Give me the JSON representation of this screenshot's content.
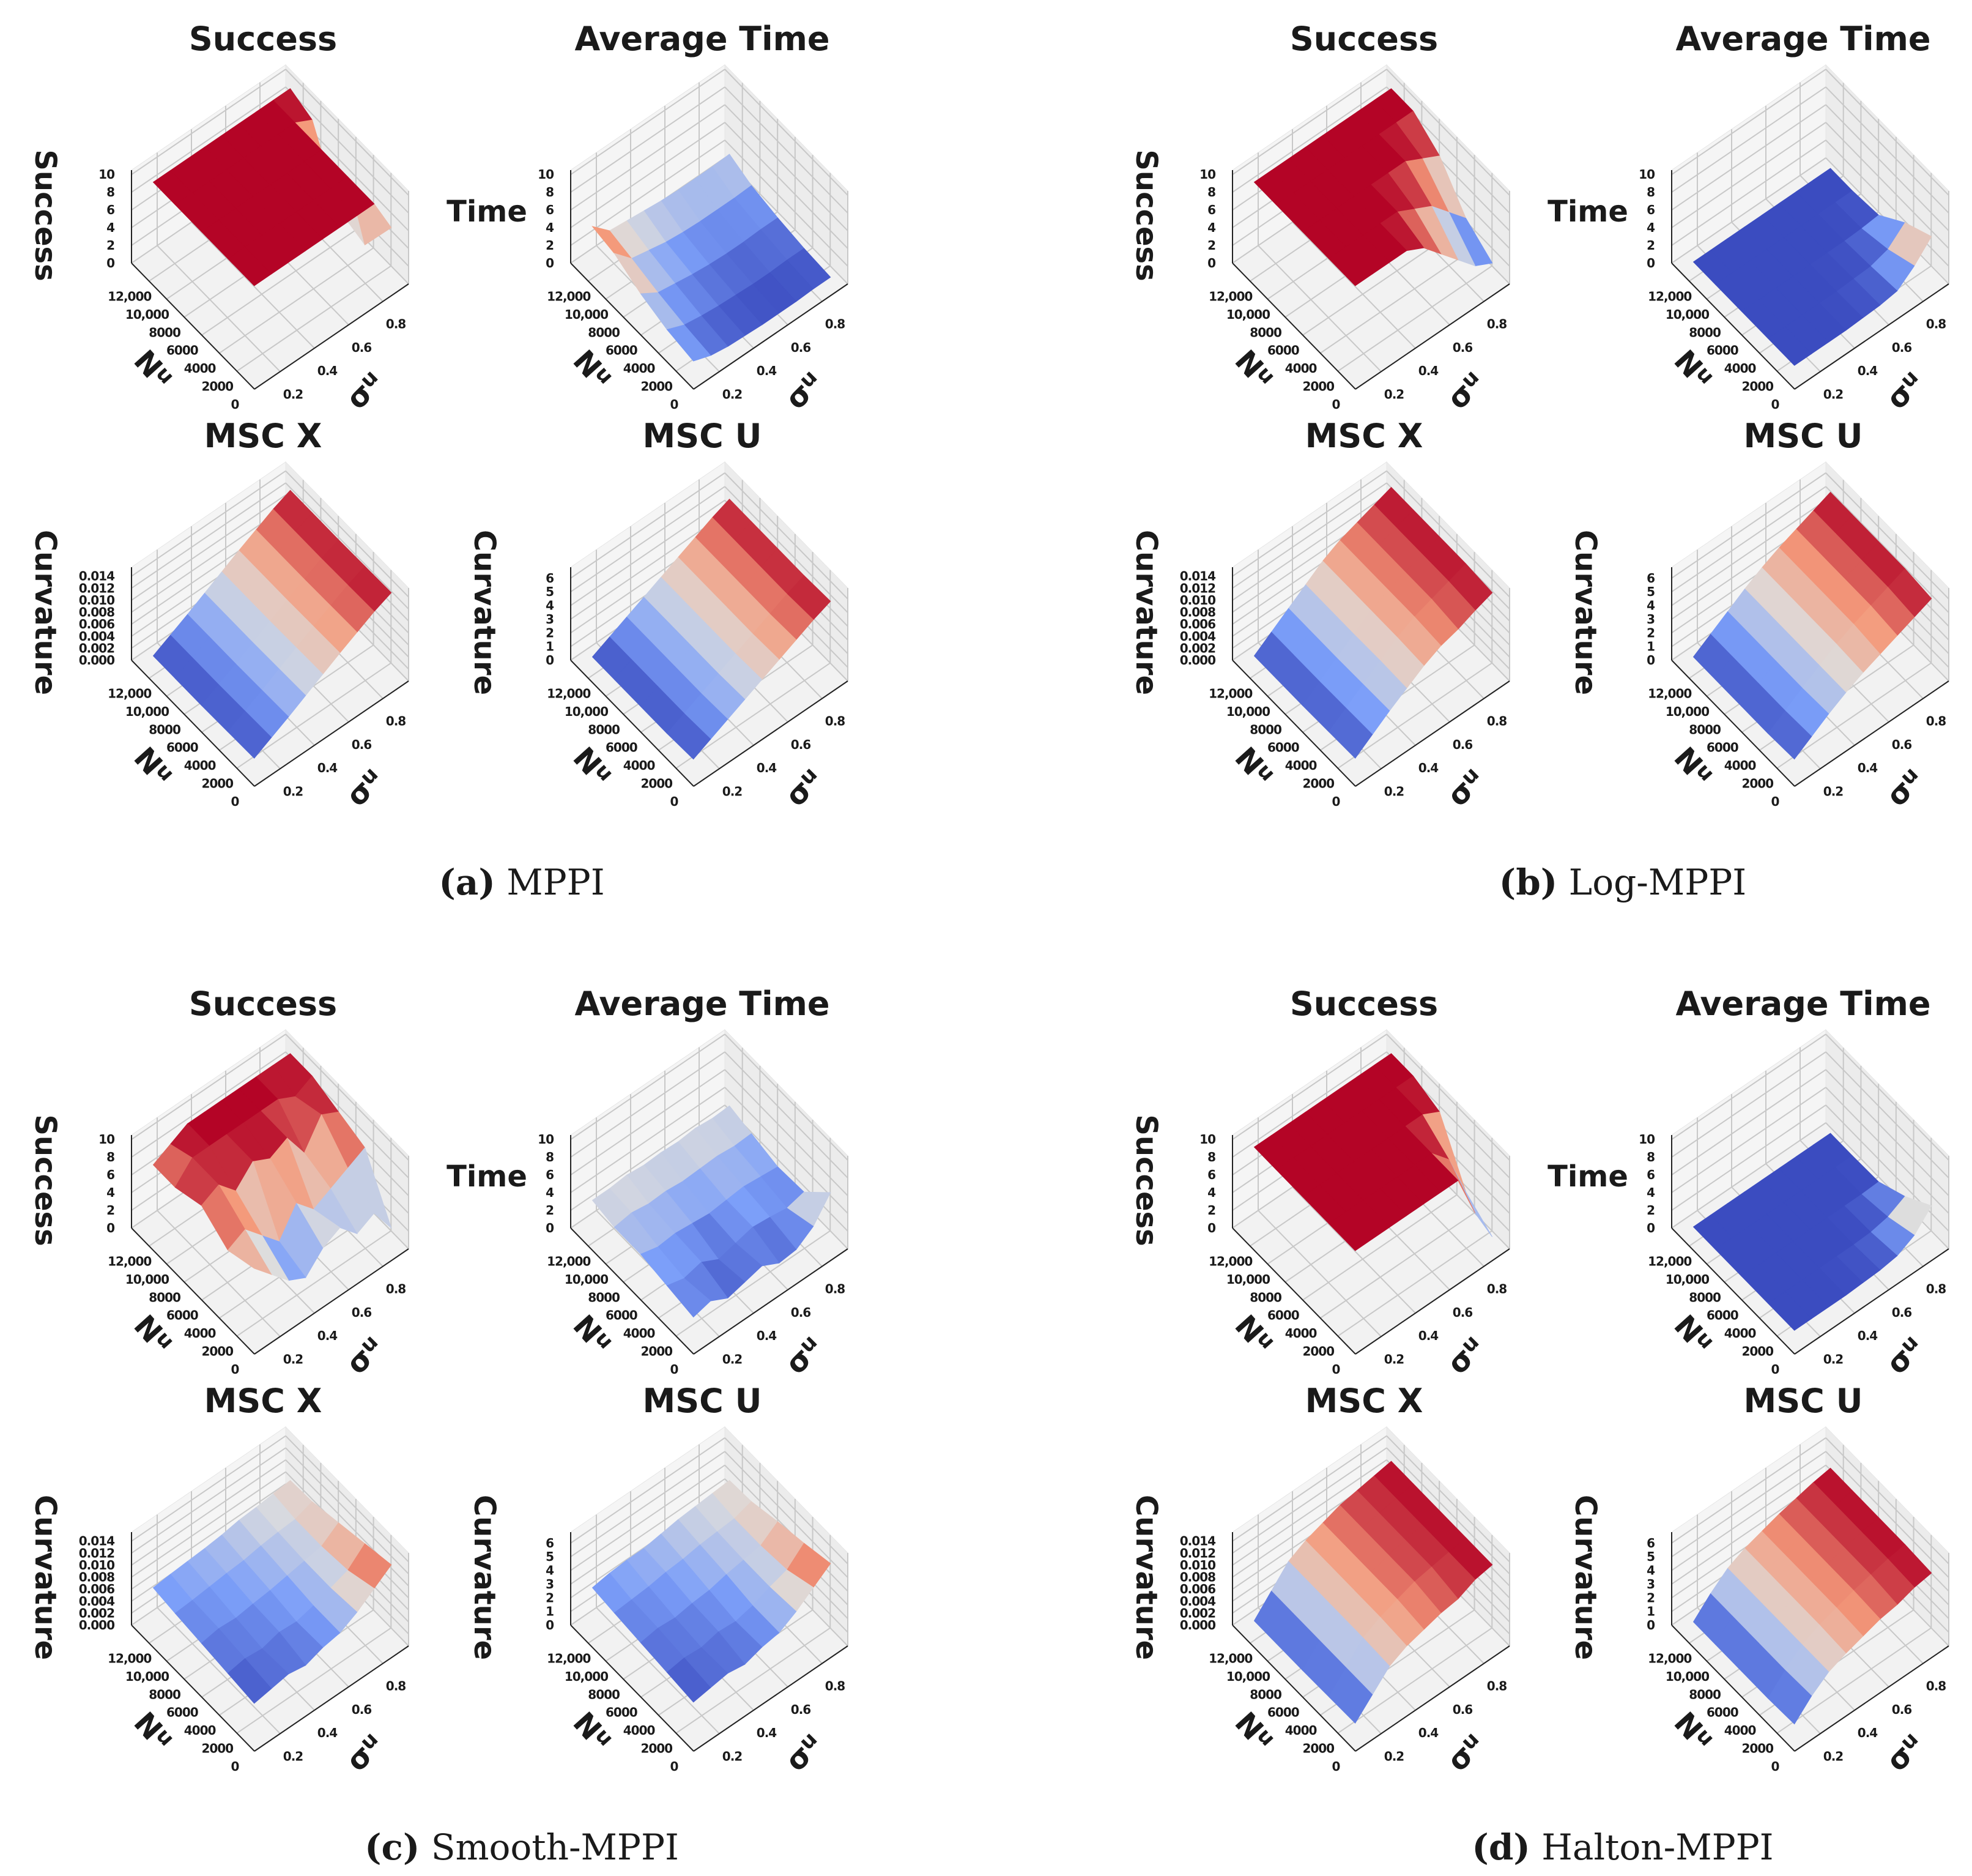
{
  "axes": {
    "xlabel": "σ",
    "xlabel_sub": "u",
    "ylabel": "N",
    "ylabel_sub": "u",
    "x_ticks": [
      "0.2",
      "0.4",
      "0.6",
      "0.8"
    ],
    "x_tick_values": [
      0.2,
      0.4,
      0.6,
      0.8
    ],
    "y_ticks": [
      "0",
      "2000",
      "4000",
      "6000",
      "8000",
      "10,000",
      "12,000"
    ],
    "y_tick_values": [
      0,
      2000,
      4000,
      6000,
      8000,
      10000,
      12000
    ],
    "x_range": [
      0.05,
      0.95
    ],
    "y_range": [
      0,
      14000
    ],
    "sigma_values": [
      0.1,
      0.2,
      0.3,
      0.4,
      0.5,
      0.6,
      0.7,
      0.8,
      0.9
    ],
    "n_values": [
      1000,
      4000,
      7000,
      10000,
      12500
    ],
    "colormap": [
      "#3b4cc0",
      "#7c9ff9",
      "#dddddd",
      "#f49a7b",
      "#b40426"
    ]
  },
  "plot_types": [
    {
      "title": "Success",
      "zlabel": "Success",
      "zlabel_horizontal": false,
      "zlim": [
        0,
        10.5
      ],
      "z_ticks": [
        "0",
        "2",
        "4",
        "6",
        "8",
        "10"
      ],
      "z_tick_values": [
        0,
        2,
        4,
        6,
        8,
        10
      ]
    },
    {
      "title": "Average Time",
      "zlabel": "Time",
      "zlabel_horizontal": true,
      "zlim": [
        0,
        10.5
      ],
      "z_ticks": [
        "0",
        "2",
        "4",
        "6",
        "8",
        "10"
      ],
      "z_tick_values": [
        0,
        2,
        4,
        6,
        8,
        10
      ]
    },
    {
      "title": "MSC X",
      "zlabel": "Curvature",
      "zlabel_horizontal": false,
      "zlim": [
        0,
        0.0155
      ],
      "z_ticks": [
        "0.000",
        "0.002",
        "0.004",
        "0.006",
        "0.008",
        "0.010",
        "0.012",
        "0.014"
      ],
      "z_tick_values": [
        0,
        0.002,
        0.004,
        0.006,
        0.008,
        0.01,
        0.012,
        0.014
      ]
    },
    {
      "title": "MSC U",
      "zlabel": "Curvature",
      "zlabel_horizontal": false,
      "zlim": [
        0,
        6.8
      ],
      "z_ticks": [
        "0",
        "1",
        "2",
        "3",
        "4",
        "5",
        "6"
      ],
      "z_tick_values": [
        0,
        1,
        2,
        3,
        4,
        5,
        6
      ]
    }
  ],
  "chart_data": [
    {
      "type": "surface",
      "caption_letter": "(a)",
      "caption_name": " MPPI",
      "plots": [
        {
          "z": [
            [
              10,
              10,
              10,
              10,
              10,
              10,
              10,
              10,
              6
            ],
            [
              10,
              10,
              10,
              10,
              10,
              10,
              10,
              10,
              1
            ],
            [
              10,
              10,
              10,
              10,
              10,
              10,
              10,
              10,
              2
            ],
            [
              10,
              10,
              10,
              10,
              10,
              10,
              10,
              10,
              9
            ],
            [
              10,
              10,
              10,
              10,
              10,
              10,
              10,
              10,
              10
            ]
          ]
        },
        {
          "z": [
            [
              1.5,
              0.8,
              0.5,
              0.4,
              0.3,
              0.3,
              0.3,
              0.4,
              0.4
            ],
            [
              2.0,
              1.2,
              0.9,
              0.7,
              0.6,
              0.5,
              0.5,
              0.6,
              0.6
            ],
            [
              3.0,
              1.8,
              1.5,
              1.2,
              1.0,
              0.9,
              0.9,
              1.0,
              1.0
            ],
            [
              4.5,
              2.6,
              2.2,
              1.8,
              1.6,
              1.5,
              1.5,
              1.5,
              1.6
            ],
            [
              5.0,
              3.2,
              3.0,
              2.8,
              2.6,
              2.5,
              2.5,
              2.5,
              2.6
            ]
          ]
        },
        {
          "z": [
            [
              0.0022,
              0.0037,
              0.0052,
              0.0068,
              0.0084,
              0.01,
              0.0115,
              0.013,
              0.0142
            ],
            [
              0.0021,
              0.0036,
              0.0051,
              0.0067,
              0.0083,
              0.0099,
              0.0114,
              0.0129,
              0.0141
            ],
            [
              0.002,
              0.0035,
              0.005,
              0.0066,
              0.0082,
              0.0098,
              0.0113,
              0.0128,
              0.014
            ],
            [
              0.002,
              0.0035,
              0.005,
              0.0066,
              0.0082,
              0.0098,
              0.0113,
              0.0128,
              0.014
            ],
            [
              0.002,
              0.0035,
              0.005,
              0.0066,
              0.0082,
              0.0098,
              0.0113,
              0.0128,
              0.014
            ]
          ]
        },
        {
          "z": [
            [
              0.9,
              1.5,
              2.1,
              2.7,
              3.3,
              3.9,
              4.5,
              5.1,
              5.6
            ],
            [
              0.8,
              1.4,
              2.0,
              2.6,
              3.2,
              3.8,
              4.4,
              5.0,
              5.5
            ],
            [
              0.8,
              1.4,
              2.0,
              2.6,
              3.2,
              3.8,
              4.4,
              5.0,
              5.5
            ],
            [
              0.8,
              1.4,
              2.0,
              2.6,
              3.2,
              3.8,
              4.4,
              5.0,
              5.5
            ],
            [
              0.8,
              1.4,
              2.0,
              2.6,
              3.2,
              3.8,
              4.4,
              5.0,
              5.5
            ]
          ]
        }
      ]
    },
    {
      "type": "surface",
      "caption_letter": "(b)",
      "caption_name": " Log-MPPI",
      "plots": [
        {
          "z": [
            [
              10,
              10,
              10,
              10,
              9,
              7,
              5,
              3,
              2
            ],
            [
              10,
              10,
              10,
              10,
              10,
              9,
              8,
              6,
              4
            ],
            [
              10,
              10,
              10,
              10,
              10,
              10,
              10,
              9,
              8
            ],
            [
              10,
              10,
              10,
              10,
              10,
              10,
              10,
              10,
              10
            ],
            [
              10,
              10,
              10,
              10,
              10,
              10,
              10,
              10,
              10
            ]
          ]
        },
        {
          "z": [
            [
              1,
              1,
              1,
              1,
              1.1,
              1.2,
              1.5,
              3,
              5
            ],
            [
              1,
              1,
              1,
              1,
              1,
              1.1,
              1.2,
              1.8,
              3.5
            ],
            [
              1,
              1,
              1,
              1,
              1,
              1,
              1,
              1.1,
              1.3
            ],
            [
              1,
              1,
              1,
              1,
              1,
              1,
              1,
              1,
              1
            ],
            [
              1,
              1,
              1,
              1,
              1,
              1,
              1,
              1,
              1
            ]
          ]
        },
        {
          "z": [
            [
              0.0022,
              0.0042,
              0.0062,
              0.008,
              0.0098,
              0.0112,
              0.012,
              0.0132,
              0.0142
            ],
            [
              0.0021,
              0.0041,
              0.0061,
              0.0081,
              0.01,
              0.0115,
              0.0125,
              0.0135,
              0.0145
            ],
            [
              0.002,
              0.004,
              0.006,
              0.008,
              0.01,
              0.0115,
              0.0125,
              0.0135,
              0.0145
            ],
            [
              0.002,
              0.004,
              0.006,
              0.008,
              0.01,
              0.0115,
              0.0125,
              0.0135,
              0.0145
            ],
            [
              0.002,
              0.004,
              0.006,
              0.008,
              0.01,
              0.0115,
              0.0125,
              0.0135,
              0.0145
            ]
          ]
        },
        {
          "z": [
            [
              0.9,
              1.7,
              2.5,
              3.2,
              3.8,
              4.3,
              4.8,
              5.3,
              5.8
            ],
            [
              0.8,
              1.6,
              2.4,
              3.2,
              3.9,
              4.5,
              5.0,
              5.5,
              6.0
            ],
            [
              0.8,
              1.6,
              2.4,
              3.2,
              3.9,
              4.5,
              5.0,
              5.5,
              6.0
            ],
            [
              0.8,
              1.6,
              2.4,
              3.2,
              3.9,
              4.5,
              5.0,
              5.5,
              6.0
            ],
            [
              0.8,
              1.6,
              2.4,
              3.2,
              3.9,
              4.5,
              5.0,
              5.5,
              6.0
            ]
          ]
        }
      ]
    },
    {
      "type": "surface",
      "caption_letter": "(c)",
      "caption_name": " Smooth-MPPI",
      "plots": [
        {
          "z": [
            [
              8,
              6,
              4,
              3,
              5,
              6,
              4,
              5,
              2
            ],
            [
              7,
              8,
              6,
              4,
              7,
              5,
              6,
              7,
              8
            ],
            [
              9,
              10,
              8,
              10,
              9,
              10,
              7,
              10,
              9
            ],
            [
              8,
              10,
              10,
              10,
              10,
              10,
              10,
              9,
              10
            ],
            [
              8,
              9,
              10,
              10,
              10,
              10,
              10,
              10,
              10
            ]
          ]
        },
        {
          "z": [
            [
              2.5,
              3,
              2,
              2.5,
              3,
              2,
              2.2,
              3.5,
              6
            ],
            [
              3,
              2.5,
              3,
              2,
              2.5,
              3,
              2.8,
              2.5,
              3
            ],
            [
              3.5,
              3,
              3.2,
              3,
              2.8,
              3,
              3.2,
              3,
              2.8
            ],
            [
              3.5,
              3.8,
              3.5,
              3.6,
              3.4,
              3.5,
              3.6,
              3.4,
              3.5
            ],
            [
              4,
              4,
              4.2,
              4,
              4.1,
              4,
              4.2,
              4,
              4.1
            ]
          ]
        },
        {
          "z": [
            [
              0.0055,
              0.006,
              0.0065,
              0.006,
              0.007,
              0.0075,
              0.009,
              0.011,
              0.013
            ],
            [
              0.006,
              0.0065,
              0.0062,
              0.007,
              0.0068,
              0.0075,
              0.0085,
              0.0095,
              0.012
            ],
            [
              0.0065,
              0.007,
              0.0068,
              0.0072,
              0.0075,
              0.008,
              0.0085,
              0.009,
              0.011
            ],
            [
              0.007,
              0.0072,
              0.0075,
              0.0078,
              0.008,
              0.0085,
              0.0088,
              0.009,
              0.01
            ],
            [
              0.0075,
              0.0078,
              0.008,
              0.0082,
              0.0085,
              0.009,
              0.0092,
              0.0095,
              0.0098
            ]
          ]
        },
        {
          "z": [
            [
              2.5,
              2.7,
              2.9,
              2.7,
              3.1,
              3.3,
              4.0,
              4.9,
              5.8
            ],
            [
              2.7,
              2.9,
              2.8,
              3.1,
              3.0,
              3.3,
              3.8,
              4.2,
              5.3
            ],
            [
              2.9,
              3.1,
              3.0,
              3.2,
              3.3,
              3.6,
              3.8,
              4.0,
              4.9
            ],
            [
              3.1,
              3.2,
              3.3,
              3.5,
              3.6,
              3.8,
              3.9,
              4.0,
              4.4
            ],
            [
              3.3,
              3.5,
              3.6,
              3.6,
              3.8,
              4.0,
              4.1,
              4.2,
              4.3
            ]
          ]
        }
      ]
    },
    {
      "type": "surface",
      "caption_letter": "(d)",
      "caption_name": " Halton-MPPI",
      "plots": [
        {
          "z": [
            [
              10,
              10,
              10,
              10,
              10,
              10,
              10,
              5,
              1
            ],
            [
              10,
              10,
              10,
              10,
              10,
              10,
              10,
              8,
              3
            ],
            [
              10,
              10,
              10,
              10,
              10,
              10,
              10,
              10,
              9
            ],
            [
              10,
              10,
              10,
              10,
              10,
              10,
              10,
              10,
              10
            ],
            [
              10,
              10,
              10,
              10,
              10,
              10,
              10,
              10,
              10
            ]
          ]
        },
        {
          "z": [
            [
              1,
              1,
              1,
              1,
              1.1,
              1.2,
              1.5,
              2.5,
              4.5
            ],
            [
              1,
              1,
              1,
              1,
              1,
              1,
              1.1,
              1.5,
              2.5
            ],
            [
              1,
              1,
              1,
              1,
              1,
              1,
              1,
              1,
              1.1
            ],
            [
              1,
              1,
              1,
              1,
              1,
              1,
              1,
              1,
              1
            ],
            [
              1,
              1,
              1,
              1,
              1,
              1,
              1,
              1,
              1
            ]
          ]
        },
        {
          "z": [
            [
              0.0022,
              0.005,
              0.0078,
              0.0092,
              0.01,
              0.0108,
              0.0112,
              0.0125,
              0.013
            ],
            [
              0.0021,
              0.005,
              0.008,
              0.0095,
              0.0105,
              0.0115,
              0.012,
              0.0125,
              0.013
            ],
            [
              0.002,
              0.005,
              0.008,
              0.0095,
              0.0105,
              0.0115,
              0.012,
              0.0125,
              0.013
            ],
            [
              0.002,
              0.005,
              0.008,
              0.0095,
              0.0105,
              0.0115,
              0.012,
              0.0125,
              0.013
            ],
            [
              0.002,
              0.005,
              0.008,
              0.0095,
              0.0105,
              0.0115,
              0.012,
              0.0125,
              0.013
            ]
          ]
        },
        {
          "z": [
            [
              0.9,
              2.1,
              3.0,
              3.5,
              3.9,
              4.3,
              4.5,
              4.9,
              5.1
            ],
            [
              0.8,
              2.0,
              3.0,
              3.6,
              4.0,
              4.4,
              4.7,
              5.0,
              5.2
            ],
            [
              0.8,
              2.0,
              3.0,
              3.6,
              4.0,
              4.4,
              4.7,
              5.0,
              5.2
            ],
            [
              0.8,
              2.0,
              3.0,
              3.6,
              4.0,
              4.4,
              4.7,
              5.0,
              5.2
            ],
            [
              0.8,
              2.0,
              3.0,
              3.6,
              4.0,
              4.4,
              4.7,
              5.0,
              5.2
            ]
          ]
        }
      ]
    }
  ]
}
